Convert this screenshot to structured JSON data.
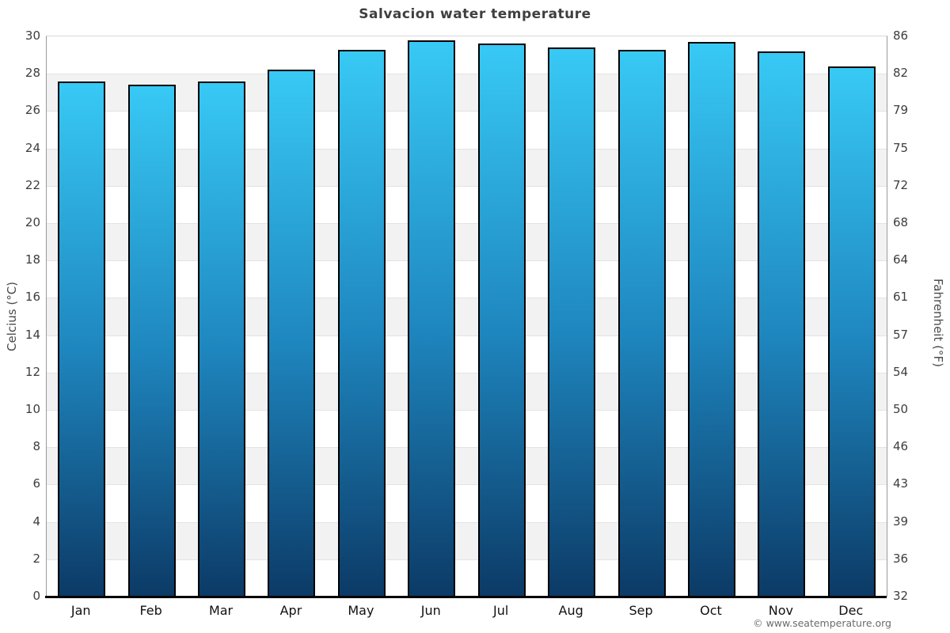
{
  "title": "Salvacion water temperature",
  "footer_credit": "© www.seatemperature.org",
  "chart_data": {
    "type": "bar",
    "title": "Salvacion water temperature",
    "categories": [
      "Jan",
      "Feb",
      "Mar",
      "Apr",
      "May",
      "Jun",
      "Jul",
      "Aug",
      "Sep",
      "Oct",
      "Nov",
      "Dec"
    ],
    "series": [
      {
        "name": "Water temperature (°C)",
        "values": [
          27.6,
          27.4,
          27.6,
          28.2,
          29.3,
          29.8,
          29.6,
          29.4,
          29.3,
          29.7,
          29.2,
          28.4
        ]
      }
    ],
    "xlabel": "",
    "ylabel_left": "Celcius (°C)",
    "ylabel_right": "Fahrenheit (°F)",
    "ylim_left": [
      0,
      30
    ],
    "y_left_ticks": [
      30,
      28,
      26,
      24,
      22,
      20,
      18,
      16,
      14,
      12,
      10,
      8,
      6,
      4,
      2,
      0
    ],
    "y_right_ticks": [
      86,
      82,
      79,
      75,
      72,
      68,
      64,
      61,
      57,
      54,
      50,
      46,
      43,
      39,
      36,
      32
    ],
    "grid": "horizontal gridlines every 2°C with alternating shaded bands",
    "legend": "none",
    "colors": {
      "bar_gradient_top": "#38c9f5",
      "bar_gradient_mid": "#1e86be",
      "bar_gradient_bottom": "#0c3a66",
      "bar_border": "#000000",
      "band_shade": "#f2f2f2",
      "gridline": "#e3e3e3",
      "axis_line": "#000000",
      "plot_side_border": "#9a9a9a"
    }
  }
}
